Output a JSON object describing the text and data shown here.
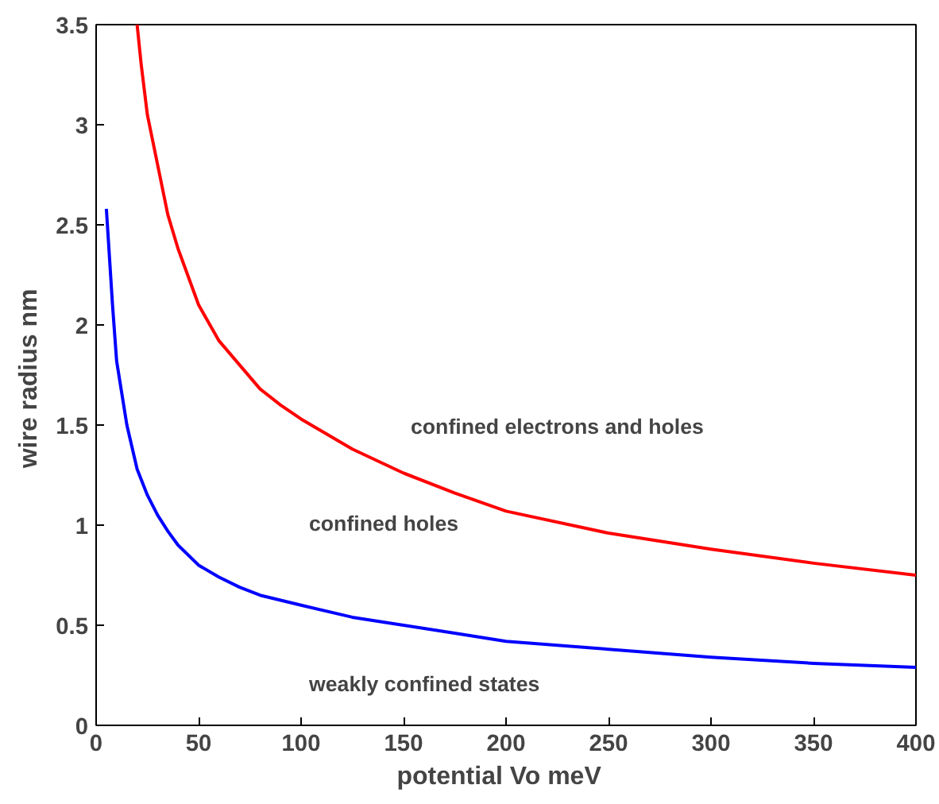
{
  "chart_data": {
    "type": "line",
    "xlabel": "potential  Vo  meV",
    "ylabel": "wire radius  nm",
    "xlim": [
      0,
      400
    ],
    "ylim": [
      0,
      3.5
    ],
    "xticks": [
      0,
      50,
      100,
      150,
      200,
      250,
      300,
      350,
      400
    ],
    "yticks": [
      0,
      0.5,
      1,
      1.5,
      2,
      2.5,
      3,
      3.5
    ],
    "grid": false,
    "marker": "none",
    "line_style": "solid",
    "series": [
      {
        "color": "#ff0000",
        "x": [
          20,
          22,
          25,
          30,
          35,
          40,
          50,
          60,
          70,
          80,
          90,
          100,
          125,
          150,
          175,
          200,
          250,
          300,
          350,
          400
        ],
        "values": [
          3.5,
          3.3,
          3.05,
          2.8,
          2.55,
          2.38,
          2.1,
          1.92,
          1.8,
          1.68,
          1.6,
          1.53,
          1.38,
          1.26,
          1.16,
          1.07,
          0.96,
          0.88,
          0.81,
          0.75
        ]
      },
      {
        "color": "#0000ff",
        "x": [
          5,
          8,
          10,
          15,
          20,
          25,
          30,
          35,
          40,
          50,
          60,
          70,
          80,
          100,
          125,
          150,
          175,
          200,
          250,
          300,
          350,
          400
        ],
        "values": [
          2.58,
          2.1,
          1.82,
          1.5,
          1.28,
          1.15,
          1.05,
          0.97,
          0.9,
          0.8,
          0.74,
          0.69,
          0.65,
          0.6,
          0.54,
          0.5,
          0.46,
          0.42,
          0.38,
          0.34,
          0.31,
          0.29
        ]
      }
    ],
    "annotations": [
      "confined electrons and holes",
      "confined holes",
      "weakly confined states"
    ]
  }
}
